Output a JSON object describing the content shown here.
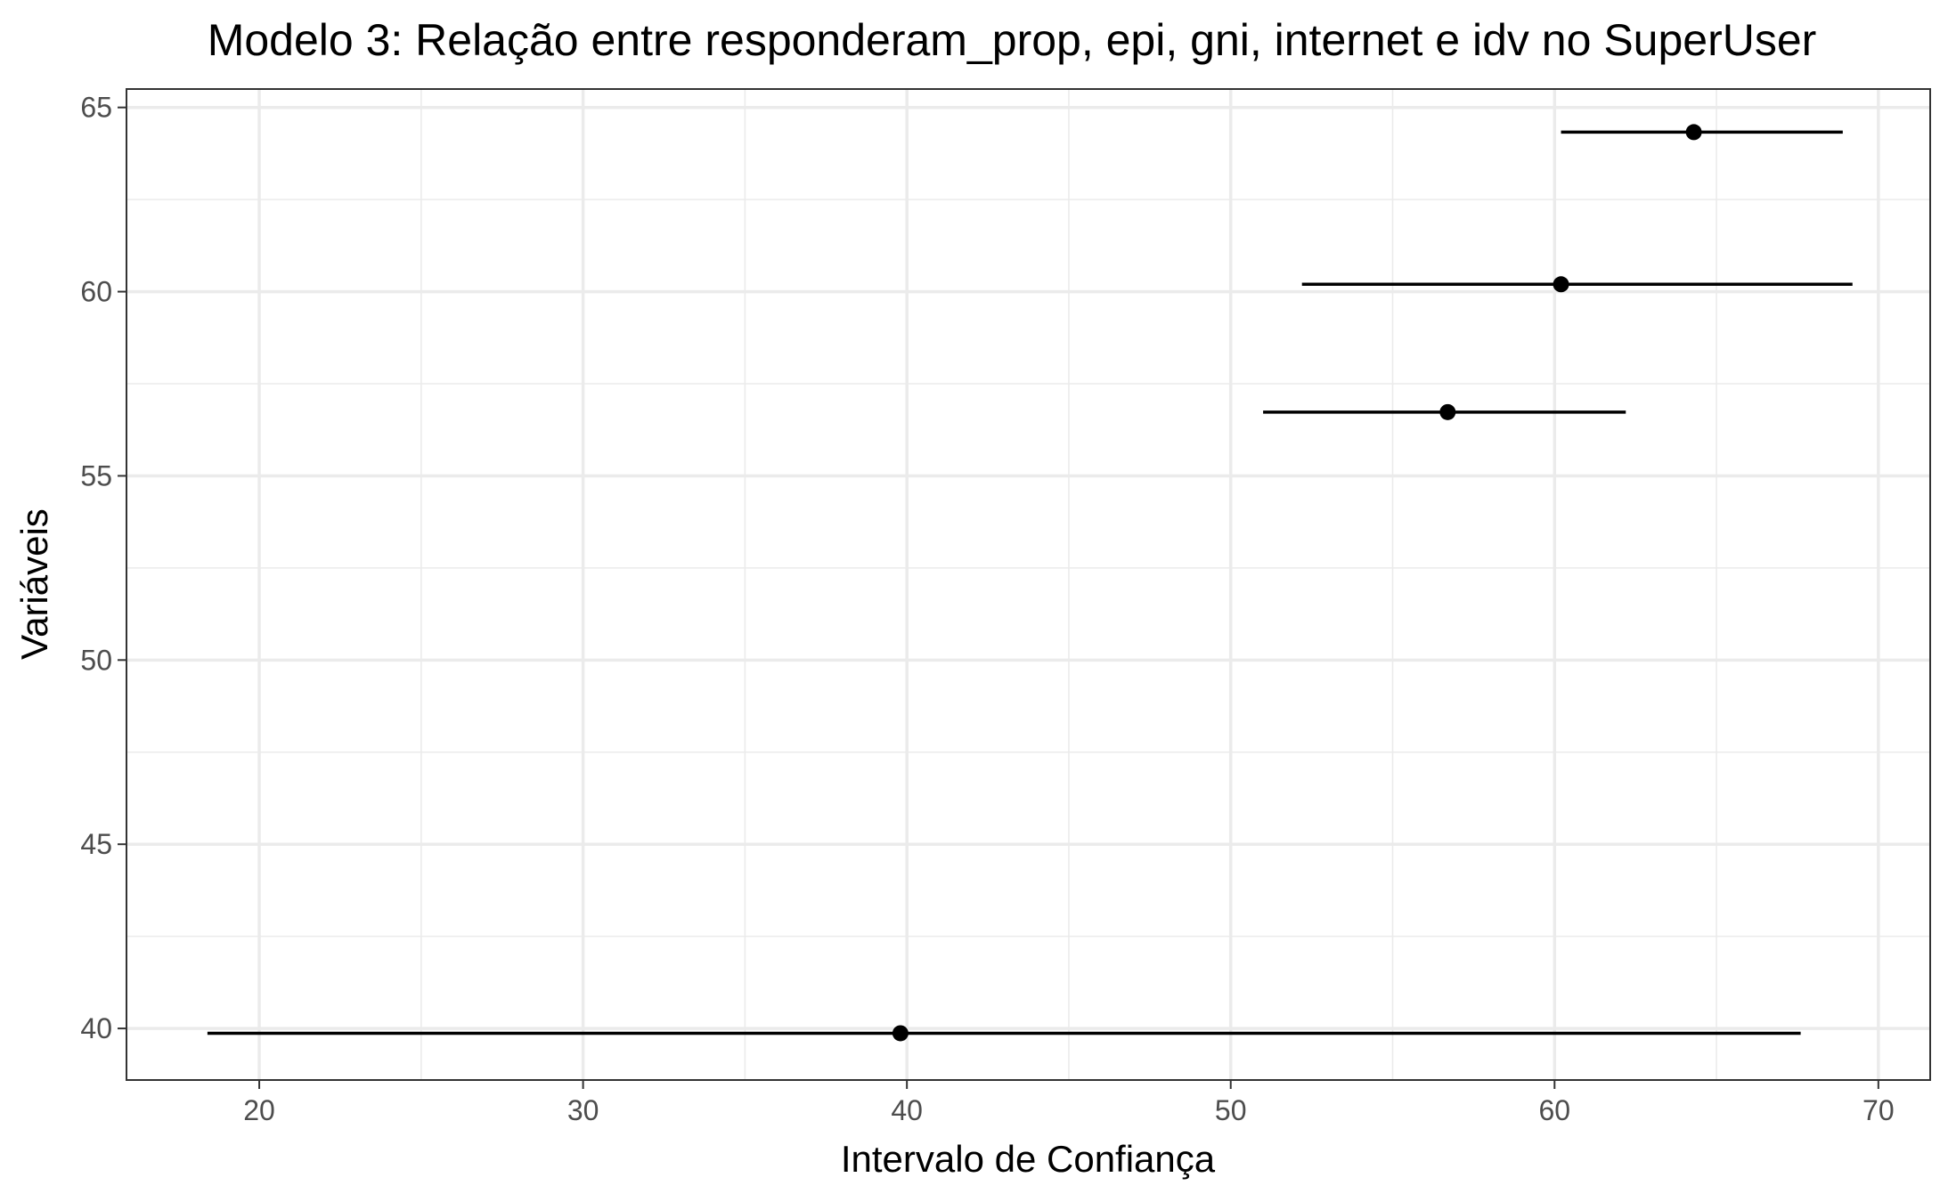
{
  "chart_data": {
    "type": "scatter",
    "title": "Modelo 3: Relação entre responderam_prop, epi, gni, internet e idv no SuperUser",
    "xlabel": "Intervalo de Confiança",
    "ylabel": "Variáveis",
    "xlim": [
      15.9,
      71.6
    ],
    "ylim": [
      38.6,
      65.5
    ],
    "x_ticks": [
      20,
      30,
      40,
      50,
      60,
      70
    ],
    "x_tick_labels": [
      "20",
      "30",
      "40",
      "50",
      "60",
      "70"
    ],
    "y_ticks": [
      40,
      45,
      50,
      55,
      60,
      65
    ],
    "y_tick_labels": [
      "40",
      "45",
      "50",
      "55",
      "60",
      "65"
    ],
    "x_minor": [
      25,
      35,
      45,
      55,
      65
    ],
    "y_minor": [
      42.5,
      47.5,
      52.5,
      57.5,
      62.5
    ],
    "grid": true,
    "points": [
      {
        "y": 64.33,
        "estimate": 64.3,
        "lower": 60.2,
        "upper": 68.9
      },
      {
        "y": 60.2,
        "estimate": 60.2,
        "lower": 52.2,
        "upper": 69.2
      },
      {
        "y": 56.73,
        "estimate": 56.7,
        "lower": 51.0,
        "upper": 62.2
      },
      {
        "y": 39.87,
        "estimate": 39.8,
        "lower": 18.4,
        "upper": 67.6
      }
    ]
  }
}
